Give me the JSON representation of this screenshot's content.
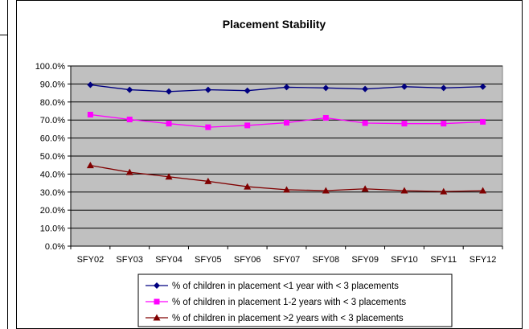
{
  "chart_data": {
    "type": "line",
    "title": "Placement Stability",
    "categories": [
      "SFY02",
      "SFY03",
      "SFY04",
      "SFY05",
      "SFY06",
      "SFY07",
      "SFY08",
      "SFY09",
      "SFY10",
      "SFY11",
      "SFY12"
    ],
    "ylim": [
      0,
      100
    ],
    "yticks": [
      "0.0%",
      "10.0%",
      "20.0%",
      "30.0%",
      "40.0%",
      "50.0%",
      "60.0%",
      "70.0%",
      "80.0%",
      "90.0%",
      "100.0%"
    ],
    "grid": true,
    "legend_position": "bottom",
    "series": [
      {
        "name": "% of children in placement <1 year with < 3 placements",
        "color": "#000080",
        "marker": "diamond",
        "values": [
          89.5,
          86.8,
          85.8,
          86.8,
          86.3,
          88.2,
          87.8,
          87.2,
          88.5,
          87.8,
          88.5
        ]
      },
      {
        "name": "% of children in placement 1-2 years with < 3 placements",
        "color": "#ff00ff",
        "marker": "square",
        "values": [
          73.0,
          70.3,
          68.0,
          66.0,
          67.0,
          68.5,
          71.2,
          68.3,
          68.0,
          68.0,
          69.0
        ]
      },
      {
        "name": "% of children in placement >2 years with < 3 placements",
        "color": "#800000",
        "marker": "triangle",
        "values": [
          44.8,
          41.0,
          38.5,
          36.0,
          33.0,
          31.3,
          30.8,
          31.8,
          30.8,
          30.3,
          30.8
        ]
      }
    ]
  }
}
